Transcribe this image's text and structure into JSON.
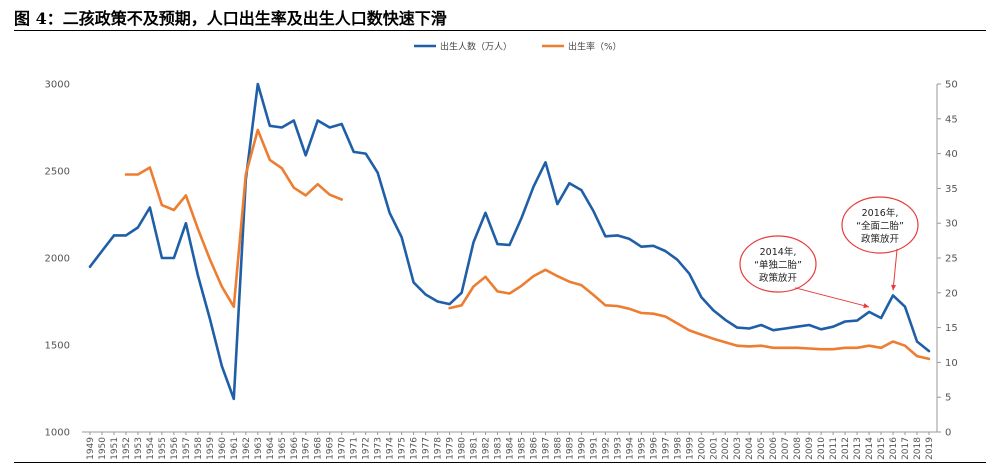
{
  "title": "图 4：二孩政策不及预期，人口出生率及出生人口数快速下滑",
  "chart_data": {
    "type": "line",
    "x": [
      1949,
      1950,
      1951,
      1952,
      1953,
      1954,
      1955,
      1956,
      1957,
      1958,
      1959,
      1960,
      1961,
      1962,
      1963,
      1964,
      1965,
      1966,
      1967,
      1968,
      1969,
      1970,
      1971,
      1972,
      1973,
      1974,
      1975,
      1976,
      1977,
      1978,
      1979,
      1980,
      1981,
      1982,
      1983,
      1984,
      1985,
      1986,
      1987,
      1988,
      1989,
      1990,
      1991,
      1992,
      1993,
      1994,
      1995,
      1996,
      1997,
      1998,
      1999,
      2000,
      2001,
      2002,
      2003,
      2004,
      2005,
      2006,
      2007,
      2008,
      2009,
      2010,
      2011,
      2012,
      2013,
      2014,
      2015,
      2016,
      2017,
      2018,
      2019
    ],
    "x_tick_labels": [
      "1949",
      "1950",
      "1951",
      "1952",
      "1953",
      "1954",
      "1955",
      "1956",
      "1957",
      "1958",
      "1959",
      "1960",
      "1961",
      "1962",
      "1963",
      "1964",
      "1965",
      "1966",
      "1967",
      "1968",
      "1969",
      "1970",
      "1971",
      "1972",
      "1973",
      "1974",
      "1975",
      "1976",
      "1977",
      "1978",
      "1979",
      "1980",
      "1981",
      "1982",
      "1983",
      "1984",
      "1985",
      "1986",
      "1987",
      "1988",
      "1989",
      "1990",
      "1991",
      "1992",
      "1993",
      "1994",
      "1995",
      "1996",
      "1997",
      "1998",
      "1999",
      "2000",
      "2001",
      "2002",
      "2003",
      "2004",
      "2005",
      "2006",
      "2007",
      "2008",
      "2009",
      "2010",
      "2011",
      "2012",
      "2013",
      "2014",
      "2015",
      "2016",
      "2017",
      "2018",
      "2019"
    ],
    "series": [
      {
        "name": "出生人数（万人）",
        "axis": "left",
        "color": "#1F5FA8",
        "values": [
          1950,
          2040,
          2130,
          2130,
          2175,
          2290,
          2000,
          2000,
          2200,
          1900,
          1650,
          1380,
          1190,
          2450,
          3000,
          2760,
          2750,
          2790,
          2590,
          2790,
          2750,
          2770,
          2610,
          2600,
          2490,
          2260,
          2120,
          1860,
          1790,
          1750,
          1735,
          1800,
          2090,
          2260,
          2080,
          2075,
          2230,
          2410,
          2550,
          2310,
          2430,
          2390,
          2270,
          2125,
          2130,
          2110,
          2065,
          2070,
          2040,
          1990,
          1910,
          1775,
          1700,
          1645,
          1600,
          1595,
          1615,
          1585,
          1595,
          1605,
          1615,
          1590,
          1605,
          1635,
          1640,
          1690,
          1655,
          1785,
          1720,
          1520,
          1465
        ]
      },
      {
        "name": "出生率（%）",
        "axis": "right",
        "color": "#ED7D31",
        "values": [
          null,
          null,
          null,
          37.0,
          37.0,
          38.0,
          32.6,
          31.9,
          34.0,
          29.2,
          24.8,
          20.9,
          18.0,
          37.0,
          43.4,
          39.1,
          37.9,
          35.1,
          34.0,
          35.6,
          34.1,
          33.4,
          null,
          null,
          null,
          null,
          null,
          null,
          null,
          null,
          17.8,
          18.2,
          20.9,
          22.3,
          20.2,
          19.9,
          21.0,
          22.4,
          23.3,
          22.4,
          21.6,
          21.1,
          19.7,
          18.2,
          18.1,
          17.7,
          17.1,
          17.0,
          16.6,
          15.6,
          14.6,
          14.0,
          13.4,
          12.9,
          12.4,
          12.3,
          12.4,
          12.1,
          12.1,
          12.1,
          12.0,
          11.9,
          11.9,
          12.1,
          12.1,
          12.4,
          12.1,
          13.0,
          12.4,
          10.9,
          10.5
        ]
      }
    ],
    "y_left": {
      "range": [
        1000,
        3000
      ],
      "ticks": [
        1000,
        1500,
        2000,
        2500,
        3000
      ]
    },
    "y_right": {
      "range": [
        0,
        50
      ],
      "ticks": [
        0,
        5,
        10,
        15,
        20,
        25,
        30,
        35,
        40,
        45,
        50
      ]
    },
    "grid": false,
    "legend_position": "top-center",
    "annotations": [
      {
        "lines": [
          "2014年,",
          "“单独二胎”",
          "政策放开"
        ],
        "target_year": 2014,
        "target_series": 0
      },
      {
        "lines": [
          "2016年,",
          "“全面二胎”",
          "政策放开"
        ],
        "target_year": 2016,
        "target_series": 0
      }
    ]
  }
}
